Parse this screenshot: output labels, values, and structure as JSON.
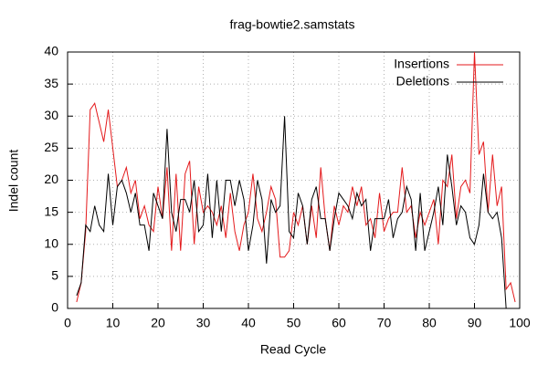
{
  "chart_data": {
    "type": "line",
    "title": "frag-bowtie2.samstats",
    "x_label": "Read Cycle",
    "y_label": "Indel count",
    "x": [
      2,
      3,
      4,
      5,
      6,
      7,
      8,
      9,
      10,
      11,
      12,
      13,
      14,
      15,
      16,
      17,
      18,
      19,
      20,
      21,
      22,
      23,
      24,
      25,
      26,
      27,
      28,
      29,
      30,
      31,
      32,
      33,
      34,
      35,
      36,
      37,
      38,
      39,
      40,
      41,
      42,
      43,
      44,
      45,
      46,
      47,
      48,
      49,
      50,
      51,
      52,
      53,
      54,
      55,
      56,
      57,
      58,
      59,
      60,
      61,
      62,
      63,
      64,
      65,
      66,
      67,
      68,
      69,
      70,
      71,
      72,
      73,
      74,
      75,
      76,
      77,
      78,
      79,
      80,
      81,
      82,
      83,
      84,
      85,
      86,
      87,
      88,
      89,
      90,
      91,
      92,
      93,
      94,
      95,
      96,
      97,
      98,
      99
    ],
    "series": [
      {
        "name": "Insertions",
        "color": "#e41a1c",
        "values": [
          1,
          4,
          12,
          31,
          32,
          29,
          26,
          31,
          25,
          19,
          20,
          22,
          18,
          20,
          14,
          16,
          13,
          12,
          19,
          14,
          22,
          9,
          21,
          9,
          21,
          23,
          10,
          19,
          15,
          16,
          15,
          13,
          16,
          11,
          18,
          12,
          9,
          13,
          15,
          21,
          14,
          12,
          15,
          19,
          17,
          8,
          8,
          9,
          15,
          13,
          16,
          10,
          16,
          11,
          22,
          14,
          9,
          16,
          13,
          16,
          15,
          19,
          16,
          19,
          13,
          14,
          11,
          18,
          12,
          14,
          15,
          15,
          22,
          15,
          16,
          11,
          15,
          13,
          15,
          17,
          10,
          20,
          19,
          24,
          14,
          19,
          20,
          18,
          40,
          24,
          26,
          15,
          24,
          16,
          19,
          3,
          4,
          1
        ]
      },
      {
        "name": "Deletions",
        "color": "#000000",
        "values": [
          2,
          4,
          13,
          12,
          16,
          13,
          12,
          21,
          13,
          19,
          20,
          18,
          15,
          18,
          13,
          13,
          9,
          18,
          16,
          14,
          28,
          15,
          12,
          17,
          17,
          15,
          20,
          12,
          13,
          21,
          11,
          20,
          12,
          20,
          20,
          16,
          20,
          17,
          9,
          13,
          20,
          17,
          7,
          17,
          15,
          16,
          30,
          12,
          11,
          18,
          16,
          10,
          17,
          19,
          14,
          14,
          9,
          14,
          18,
          17,
          16,
          14,
          18,
          16,
          17,
          9,
          14,
          14,
          14,
          17,
          11,
          14,
          15,
          19,
          17,
          9,
          18,
          9,
          12,
          15,
          19,
          13,
          24,
          19,
          13,
          16,
          15,
          11,
          10,
          13,
          21,
          15,
          14,
          15,
          11,
          0,
          null,
          null
        ]
      }
    ],
    "xlim": [
      0,
      100
    ],
    "xticks": [
      0,
      10,
      20,
      30,
      40,
      50,
      60,
      70,
      80,
      90,
      100
    ],
    "ylim": [
      0,
      40
    ],
    "yticks": [
      0,
      5,
      10,
      15,
      20,
      25,
      30,
      35,
      40
    ],
    "grid": true,
    "legend": "top-right"
  }
}
